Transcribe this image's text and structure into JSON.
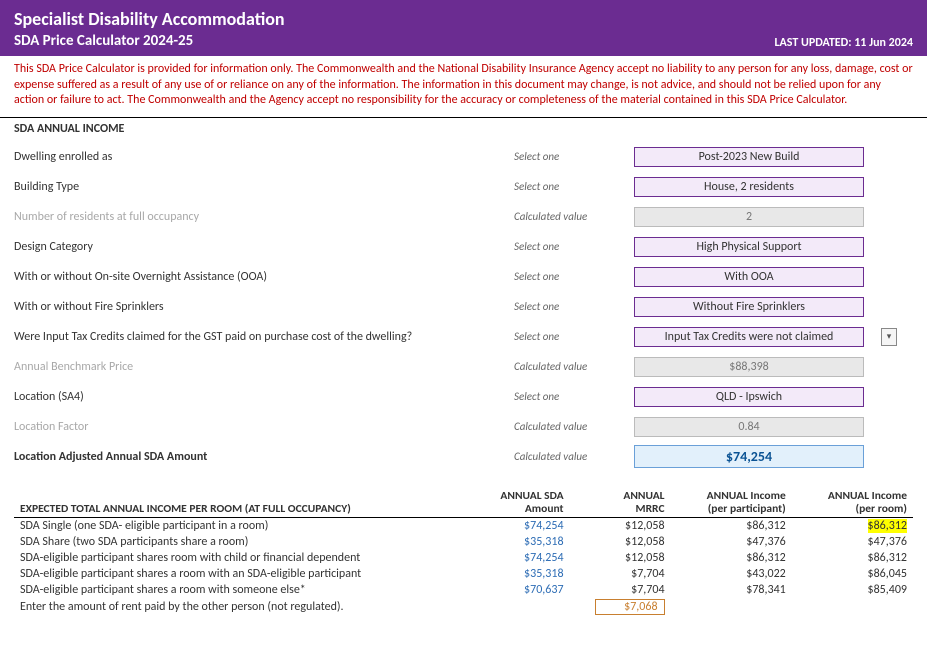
{
  "header": {
    "title": "Specialist Disability Accommodation",
    "subtitle": "SDA Price Calculator 2024-25",
    "last_updated_label": "LAST UPDATED:",
    "last_updated_value": "11 Jun 2024"
  },
  "disclaimer": "This SDA Price Calculator is provided for information only.  The Commonwealth and the National Disability Insurance Agency accept no liability to any person for any loss, damage, cost or expense suffered as a result of any use of or reliance on any of the information.  The information in this document may change, is not advice, and should not be relied upon for any action or failure to act. The Commonwealth and the Agency accept no responsibility for the accuracy or completeness of the material contained in this SDA Price Calculator.",
  "annual_income_title": "SDA ANNUAL INCOME",
  "hints": {
    "select": "Select one",
    "calculated": "Calculated value"
  },
  "rows": {
    "dwelling": {
      "label": "Dwelling enrolled as",
      "value": "Post-2023 New Build"
    },
    "building": {
      "label": "Building Type",
      "value": "House, 2 residents"
    },
    "residents": {
      "label": "Number of residents at full occupancy",
      "value": "2"
    },
    "design": {
      "label": "Design Category",
      "value": "High Physical Support"
    },
    "ooa": {
      "label": "With or without On-site Overnight Assistance (OOA)",
      "value": "With OOA"
    },
    "sprinklers": {
      "label": "With or without Fire Sprinklers",
      "value": "Without Fire Sprinklers"
    },
    "itc": {
      "label": "Were Input Tax Credits claimed for the GST paid on purchase cost of the dwelling?",
      "value": "Input Tax Credits were not claimed"
    },
    "benchmark": {
      "label": "Annual Benchmark Price",
      "value": "$88,398"
    },
    "location": {
      "label": "Location (SA4)",
      "value": "QLD - Ipswich"
    },
    "locfactor": {
      "label": "Location Factor",
      "value": "0.84"
    },
    "adjusted": {
      "label": "Location Adjusted Annual SDA Amount",
      "value": "$74,254"
    }
  },
  "expected_title": "EXPECTED TOTAL ANNUAL INCOME PER ROOM (AT FULL OCCUPANCY)",
  "columns": {
    "row_label": "",
    "sda_amount_l1": "ANNUAL SDA",
    "sda_amount_l2": "Amount",
    "mrrc_l1": "ANNUAL",
    "mrrc_l2": "MRRC",
    "per_part_l1": "ANNUAL Income",
    "per_part_l2": "(per participant)",
    "per_room_l1": "ANNUAL Income",
    "per_room_l2": "(per room)"
  },
  "income_rows": [
    {
      "label": "SDA Single (one SDA- eligible participant in a room)",
      "sda": "$74,254",
      "mrrc": "$12,058",
      "per_part": "$86,312",
      "per_room": "$86,312",
      "hl_room": true
    },
    {
      "label": "SDA Share (two SDA participants share a room)",
      "sda": "$35,318",
      "mrrc": "$12,058",
      "per_part": "$47,376",
      "per_room": "$47,376"
    },
    {
      "label": "SDA-eligible participant shares room with child or financial dependent",
      "sda": "$74,254",
      "mrrc": "$12,058",
      "per_part": "$86,312",
      "per_room": "$86,312"
    },
    {
      "label": "SDA-eligible participant shares a room with an SDA-eligible participant",
      "sda": "$35,318",
      "mrrc": "$7,704",
      "per_part": "$43,022",
      "per_room": "$86,045"
    },
    {
      "label": "SDA-eligible participant shares a room with someone else*",
      "sda": "$70,637",
      "mrrc": "$7,704",
      "per_part": "$78,341",
      "per_room": "$85,409"
    }
  ],
  "rent_row": {
    "label": "Enter the amount of rent paid by the other person (not regulated).",
    "value": "$7,068"
  }
}
